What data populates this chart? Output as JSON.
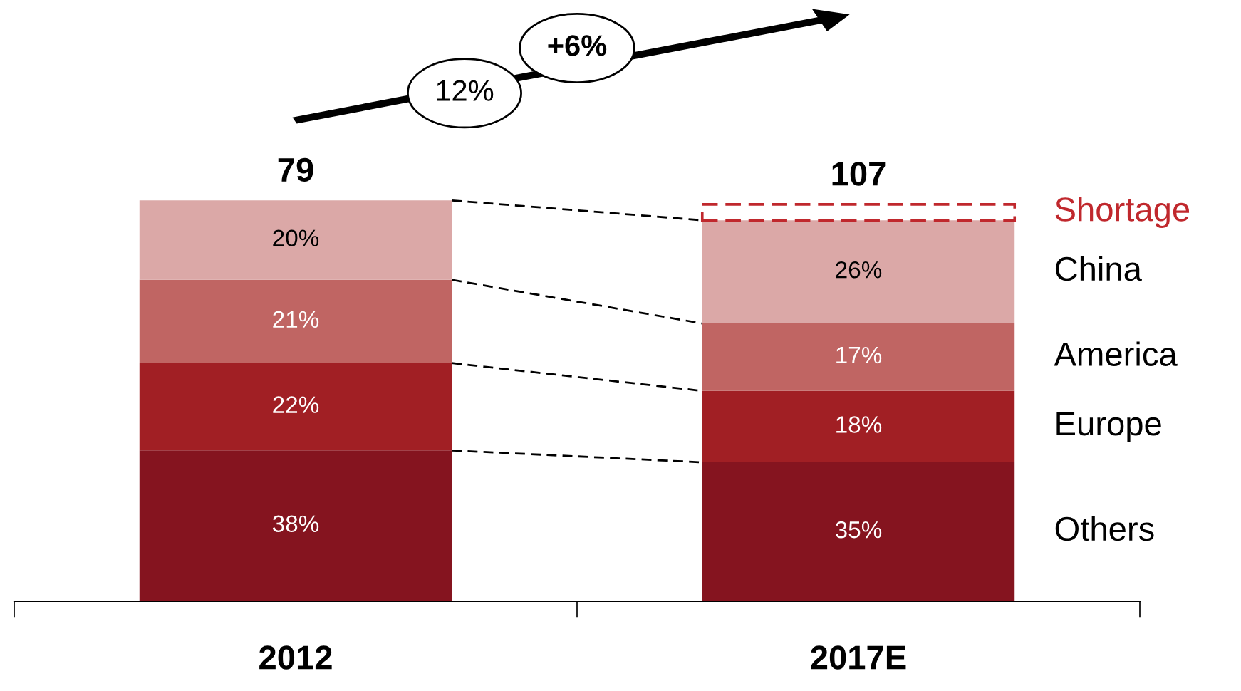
{
  "chart_data": {
    "type": "bar",
    "stacked": true,
    "categories": [
      "2012",
      "2017E"
    ],
    "series": [
      {
        "name": "Others",
        "color": "#85141f",
        "values": [
          38,
          35
        ],
        "value_labels": [
          "38%",
          "35%"
        ]
      },
      {
        "name": "Europe",
        "color": "#a11f24",
        "values": [
          22,
          18
        ],
        "value_labels": [
          "22%",
          "18%"
        ]
      },
      {
        "name": "America",
        "color": "#c06563",
        "values": [
          21,
          17
        ],
        "value_labels": [
          "21%",
          "17%"
        ]
      },
      {
        "name": "China",
        "color": "#dba8a7",
        "values": [
          20,
          26
        ],
        "value_labels": [
          "20%",
          "26%"
        ]
      },
      {
        "name": "Shortage",
        "color": "#c0282d",
        "values": [
          null,
          4
        ],
        "line_style": "dashed"
      }
    ],
    "annotations": [
      {
        "text": "79",
        "x": "2012",
        "y": 101
      },
      {
        "text": "107",
        "x": "2017E",
        "y": 100
      },
      "12%",
      "+6%"
    ]
  }
}
